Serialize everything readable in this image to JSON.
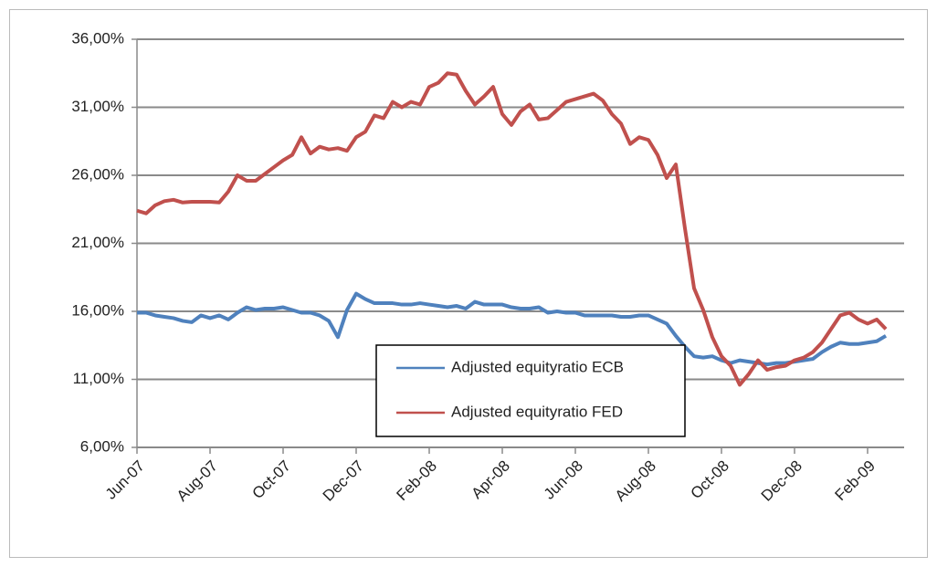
{
  "chart_data": {
    "type": "line",
    "categories": [
      "Jun-07",
      null,
      null,
      null,
      null,
      null,
      null,
      null,
      "Aug-07",
      null,
      null,
      null,
      null,
      null,
      null,
      null,
      "Oct-07",
      null,
      null,
      null,
      null,
      null,
      null,
      null,
      "Dec-07",
      null,
      null,
      null,
      null,
      null,
      null,
      null,
      "Feb-08",
      null,
      null,
      null,
      null,
      null,
      null,
      null,
      "Apr-08",
      null,
      null,
      null,
      null,
      null,
      null,
      null,
      "Jun-08",
      null,
      null,
      null,
      null,
      null,
      null,
      null,
      "Aug-08",
      null,
      null,
      null,
      null,
      null,
      null,
      null,
      "Oct-08",
      null,
      null,
      null,
      null,
      null,
      null,
      null,
      "Dec-08",
      null,
      null,
      null,
      null,
      null,
      null,
      null,
      "Feb-09",
      null,
      null
    ],
    "series": [
      {
        "name": "Adjusted equityratio ECB",
        "color": "#4f81bd",
        "values": [
          15.9,
          15.9,
          15.7,
          15.6,
          15.5,
          15.3,
          15.2,
          15.7,
          15.5,
          15.7,
          15.4,
          15.9,
          16.3,
          16.1,
          16.2,
          16.2,
          16.3,
          16.1,
          15.9,
          15.9,
          15.7,
          15.3,
          14.1,
          16.1,
          17.3,
          16.9,
          16.6,
          16.6,
          16.6,
          16.5,
          16.5,
          16.6,
          16.5,
          16.4,
          16.3,
          16.4,
          16.2,
          16.7,
          16.5,
          16.5,
          16.5,
          16.3,
          16.2,
          16.2,
          16.3,
          15.9,
          16.0,
          15.9,
          15.9,
          15.7,
          15.7,
          15.7,
          15.7,
          15.6,
          15.6,
          15.7,
          15.7,
          15.4,
          15.1,
          14.2,
          13.4,
          12.7,
          12.6,
          12.7,
          12.4,
          12.2,
          12.4,
          12.3,
          12.2,
          12.1,
          12.2,
          12.2,
          12.3,
          12.4,
          12.5,
          13.0,
          13.4,
          13.7,
          13.6,
          13.6,
          13.7,
          13.8,
          14.2
        ]
      },
      {
        "name": "Adjusted equityratio FED",
        "color": "#c0504d",
        "values": [
          23.4,
          23.2,
          23.8,
          24.1,
          24.2,
          24.0,
          24.05,
          24.05,
          24.05,
          24.0,
          24.8,
          26.0,
          25.6,
          25.6,
          26.1,
          26.6,
          27.1,
          27.5,
          28.8,
          27.6,
          28.1,
          27.9,
          28.0,
          27.8,
          28.8,
          29.2,
          30.4,
          30.2,
          31.4,
          31.0,
          31.4,
          31.2,
          32.5,
          32.8,
          33.5,
          33.4,
          32.2,
          31.2,
          31.8,
          32.5,
          30.5,
          29.7,
          30.7,
          31.2,
          30.1,
          30.2,
          30.8,
          31.4,
          31.6,
          31.8,
          32.0,
          31.5,
          30.5,
          29.8,
          28.3,
          28.8,
          28.6,
          27.5,
          25.8,
          26.8,
          22.1,
          17.7,
          16.1,
          14.1,
          12.7,
          12.0,
          10.6,
          11.4,
          12.4,
          11.7,
          11.9,
          12.0,
          12.4,
          12.6,
          13.0,
          13.7,
          14.7,
          15.7,
          15.9,
          15.4,
          15.1,
          15.4,
          14.7
        ]
      }
    ],
    "ylim": [
      6,
      36
    ],
    "yticks": [
      {
        "value": 6,
        "label": "6,00%"
      },
      {
        "value": 11,
        "label": "11,00%"
      },
      {
        "value": 16,
        "label": "16,00%"
      },
      {
        "value": 21,
        "label": "21,00%"
      },
      {
        "value": 26,
        "label": "26,00%"
      },
      {
        "value": 31,
        "label": "31,00%"
      },
      {
        "value": 36,
        "label": "36,00%"
      }
    ],
    "grid": true,
    "legend": "lower center"
  }
}
